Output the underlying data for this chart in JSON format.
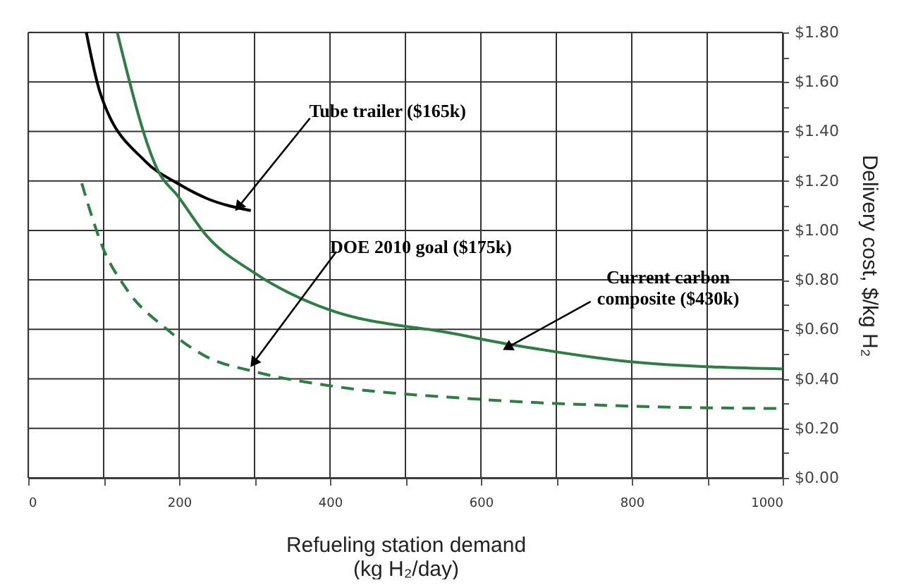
{
  "chart_data": {
    "type": "line",
    "xlabel": "Refueling station demand\n(kg H₂/day)",
    "ylabel": "Delivery cost, $/kg H₂",
    "xlim": [
      0,
      1000
    ],
    "xticks": [
      0,
      {
        "value": 100,
        "label": null
      },
      200,
      {
        "value": 300,
        "label": null
      },
      400,
      {
        "value": 500,
        "label": null
      },
      600,
      {
        "value": 700,
        "label": null
      },
      800,
      {
        "value": 900,
        "label": null
      },
      1000
    ],
    "ylim": [
      0,
      1.8
    ],
    "yticks": [
      {
        "value": 0,
        "label": "$0.00"
      },
      {
        "value": 0.1,
        "label": null
      },
      {
        "value": 0.2,
        "label": "$0.20"
      },
      {
        "value": 0.3,
        "label": null
      },
      {
        "value": 0.4,
        "label": "$0.40"
      },
      {
        "value": 0.5,
        "label": null
      },
      {
        "value": 0.6,
        "label": "$0.60"
      },
      {
        "value": 0.7,
        "label": null
      },
      {
        "value": 0.8,
        "label": "$0.80"
      },
      {
        "value": 0.9,
        "label": null
      },
      {
        "value": 1.0,
        "label": "$1.00"
      },
      {
        "value": 1.1,
        "label": null
      },
      {
        "value": 1.2,
        "label": "$1.20"
      },
      {
        "value": 1.3,
        "label": null
      },
      {
        "value": 1.4,
        "label": "$1.40"
      },
      {
        "value": 1.5,
        "label": null
      },
      {
        "value": 1.6,
        "label": "$1.60"
      },
      {
        "value": 1.7,
        "label": null
      },
      {
        "value": 1.8,
        "label": "$1.80"
      }
    ],
    "grid": true,
    "series": [
      {
        "color": "#000000",
        "line_style": "solid",
        "x": [
          77,
          95,
          155,
          198,
          236,
          295
        ],
        "values": [
          1.8,
          1.56,
          1.28,
          1.19,
          1.13,
          1.08
        ]
      },
      {
        "color": "#2e7d45",
        "line_style": "solid",
        "x": [
          118,
          174,
          198,
          236,
          299,
          398,
          505,
          530,
          637,
          796,
          1000
        ],
        "values": [
          1.8,
          1.23,
          1.14,
          0.98,
          0.83,
          0.68,
          0.61,
          0.6,
          0.54,
          0.47,
          0.44
        ]
      },
      {
        "color": "#2e7d45",
        "line_style": "dashed",
        "x": [
          71,
          99,
          131,
          184,
          236,
          299,
          405,
          586,
          796,
          1000
        ],
        "values": [
          1.19,
          0.93,
          0.76,
          0.6,
          0.49,
          0.43,
          0.37,
          0.32,
          0.29,
          0.28
        ]
      }
    ],
    "annotations": [
      {
        "text": "Tube trailer ($165k)",
        "x": 280,
        "y": 1.1
      },
      {
        "text": "DOE 2010 goal ($175k)",
        "x": 300,
        "y": 0.47
      },
      {
        "text": "Current carbon\ncomposite ($430k)",
        "x": 637,
        "y": 0.53
      }
    ]
  }
}
